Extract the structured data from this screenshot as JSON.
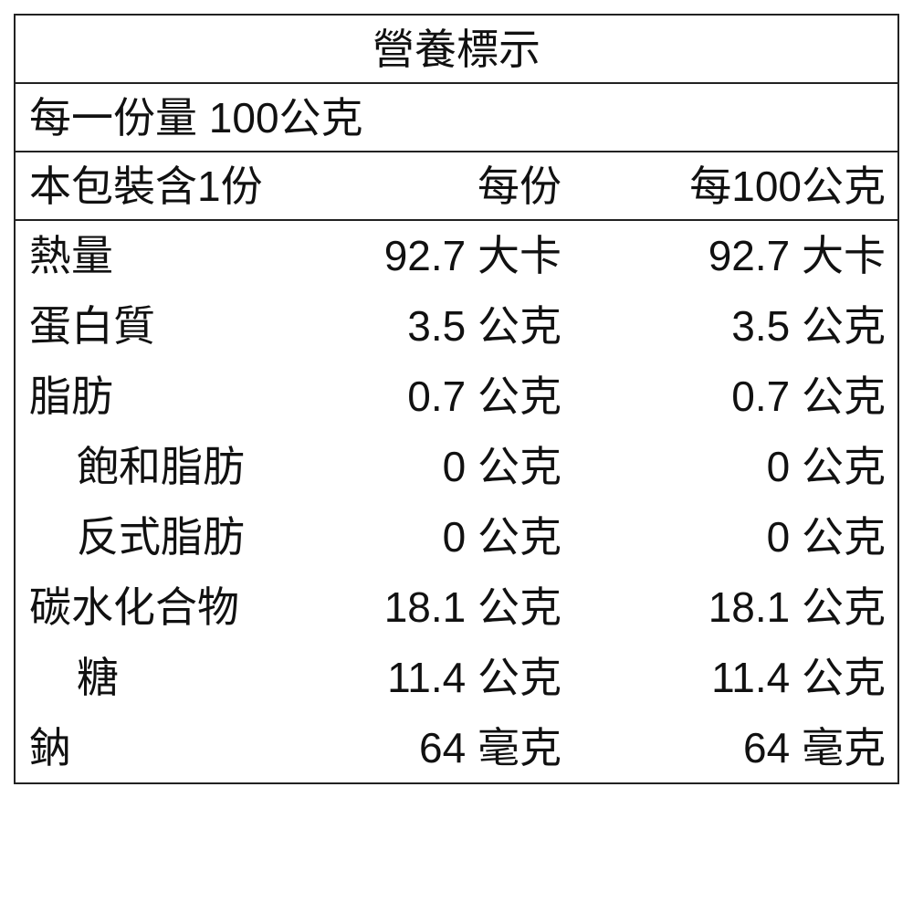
{
  "title": "營養標示",
  "serving_size": "每一份量 100公克",
  "servings_per_package": "本包裝含1份",
  "col_per_serving": "每份",
  "col_per_100g": "每100公克",
  "rows": [
    {
      "name": "熱量",
      "per_serving": "92.7 大卡",
      "per_100g": "92.7 大卡",
      "indent": false
    },
    {
      "name": "蛋白質",
      "per_serving": "3.5 公克",
      "per_100g": "3.5 公克",
      "indent": false
    },
    {
      "name": "脂肪",
      "per_serving": "0.7 公克",
      "per_100g": "0.7 公克",
      "indent": false
    },
    {
      "name": "飽和脂肪",
      "per_serving": "0 公克",
      "per_100g": "0 公克",
      "indent": true
    },
    {
      "name": "反式脂肪",
      "per_serving": "0 公克",
      "per_100g": "0 公克",
      "indent": true
    },
    {
      "name": "碳水化合物",
      "per_serving": "18.1 公克",
      "per_100g": "18.1 公克",
      "indent": false
    },
    {
      "name": "糖",
      "per_serving": "11.4 公克",
      "per_100g": "11.4 公克",
      "indent": true
    },
    {
      "name": "鈉",
      "per_serving": "64 毫克",
      "per_100g": "64 毫克",
      "indent": false
    }
  ]
}
